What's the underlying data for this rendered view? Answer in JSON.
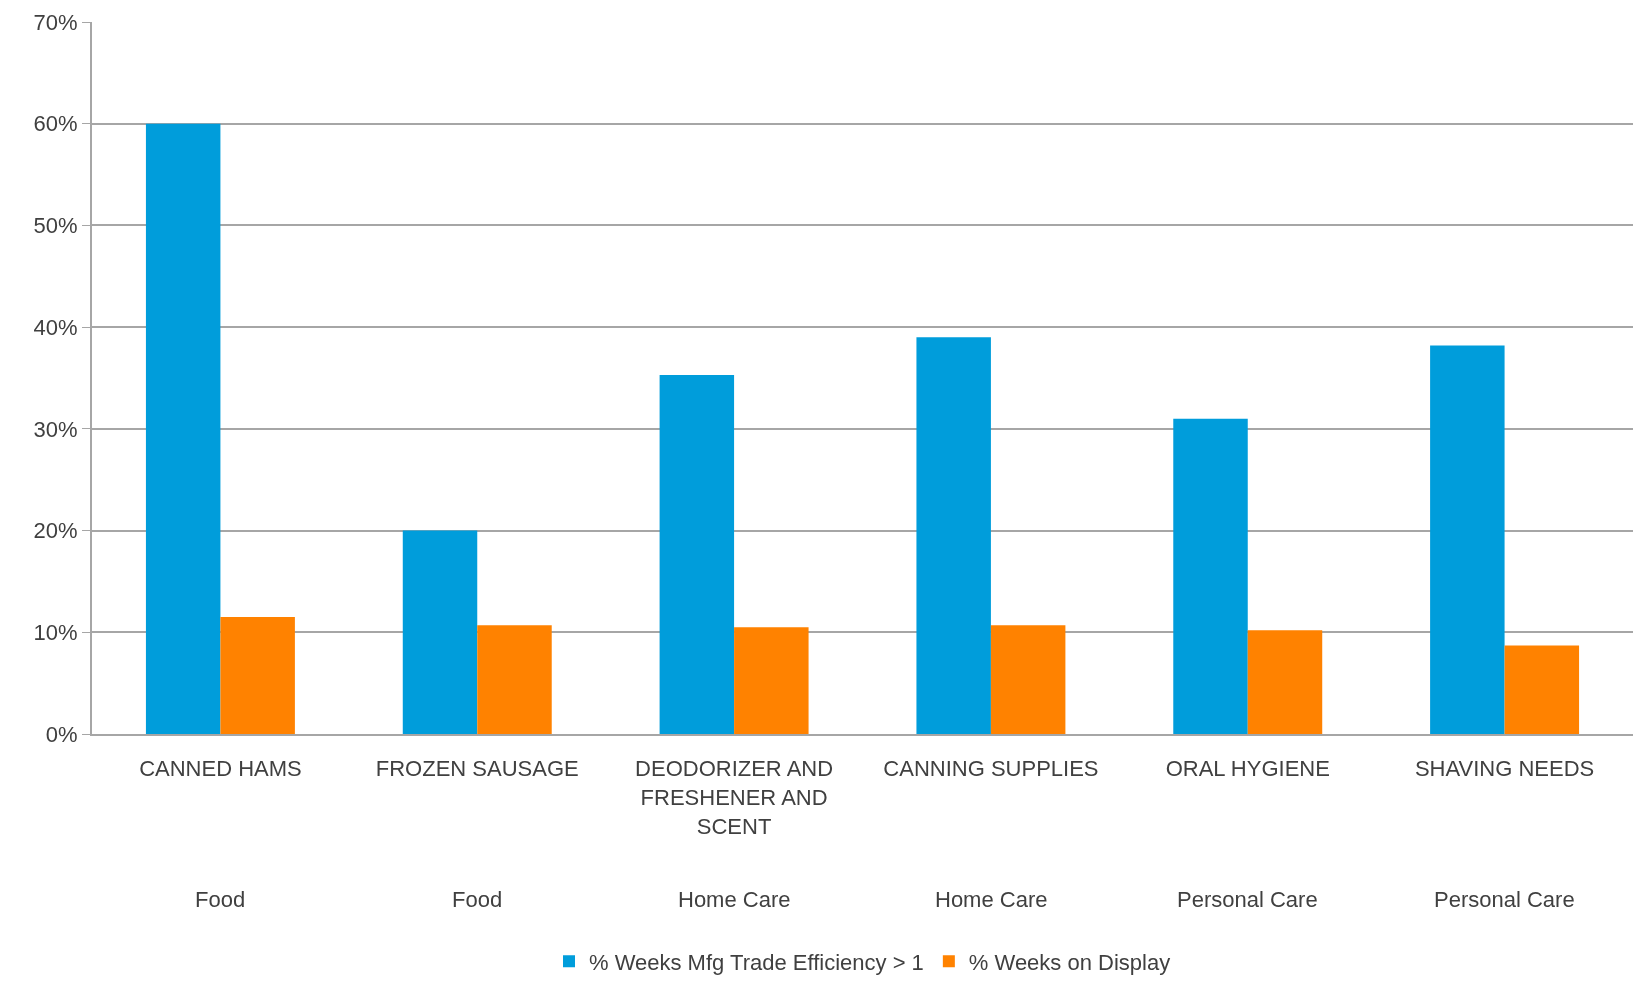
{
  "chart_data": {
    "type": "bar",
    "categories": [
      "CANNED HAMS",
      "FROZEN SAUSAGE",
      "DEODORIZER AND FRESHENER AND SCENT",
      "CANNING SUPPLIES",
      "ORAL HYGIENE",
      "SHAVING NEEDS"
    ],
    "series": [
      {
        "name": "% Weeks Mfg Trade Efficiency > 1",
        "color": "#009ddb",
        "values": [
          60,
          20,
          35.3,
          39,
          31,
          38.2
        ]
      },
      {
        "name": "% Weeks on Display",
        "color": "#ff8200",
        "values": [
          11.5,
          10.7,
          10.5,
          10.7,
          10.2,
          8.7
        ]
      }
    ],
    "annotations": [
      "Food",
      "Food",
      "Home Care",
      "Home Care",
      "Personal Care",
      "Personal Care"
    ],
    "ylim": [
      0,
      70
    ],
    "yticks": [
      {
        "value": 0,
        "label": "0%"
      },
      {
        "value": 10,
        "label": "10%"
      },
      {
        "value": 20,
        "label": "20%"
      },
      {
        "value": 30,
        "label": "30%"
      },
      {
        "value": 40,
        "label": "40%"
      },
      {
        "value": 50,
        "label": "50%"
      },
      {
        "value": 60,
        "label": "60%"
      },
      {
        "value": 70,
        "label": "70%"
      }
    ],
    "grid": "y",
    "legend": "bottom"
  }
}
